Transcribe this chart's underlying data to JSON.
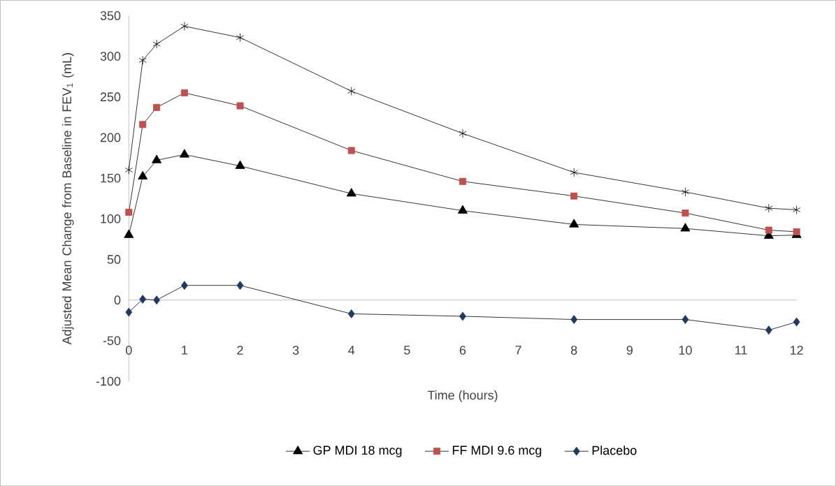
{
  "chart_data": {
    "type": "line",
    "xlabel": "Time (hours)",
    "ylabel": "Adjusted Mean Change from Baseline in FEV$_{1}$ (mL)",
    "x": [
      0,
      0.25,
      0.5,
      1,
      2,
      4,
      6,
      8,
      10,
      11.5,
      12
    ],
    "xlim": [
      0,
      12
    ],
    "xticks": [
      0,
      1,
      2,
      3,
      4,
      5,
      6,
      7,
      8,
      9,
      10,
      11,
      12
    ],
    "ylim": [
      -100,
      350
    ],
    "yticks": [
      -100,
      -50,
      0,
      50,
      100,
      150,
      200,
      250,
      300,
      350
    ],
    "legend": "bottom",
    "series": [
      {
        "color": "#000000",
        "marker": "cross",
        "values": [
          160,
          295,
          315,
          337,
          323,
          257,
          205,
          157,
          133,
          113,
          111
        ]
      },
      {
        "name": "GP MDI 18  mcg",
        "color": "#000000",
        "marker": "triangle",
        "values": [
          80,
          152,
          172,
          179,
          165,
          131,
          110,
          93,
          88,
          79,
          80
        ]
      },
      {
        "name": "FF MDI 9.6  mcg",
        "color": "#c0504d",
        "marker": "square",
        "values": [
          108,
          216,
          237,
          255,
          239,
          184,
          146,
          128,
          107,
          86,
          84
        ]
      },
      {
        "name": "Placebo",
        "color": "#1f3864",
        "marker": "diamond",
        "values": [
          -15,
          1,
          0,
          18,
          18,
          -17,
          -20,
          -24,
          -24,
          -37,
          -27
        ]
      }
    ]
  }
}
